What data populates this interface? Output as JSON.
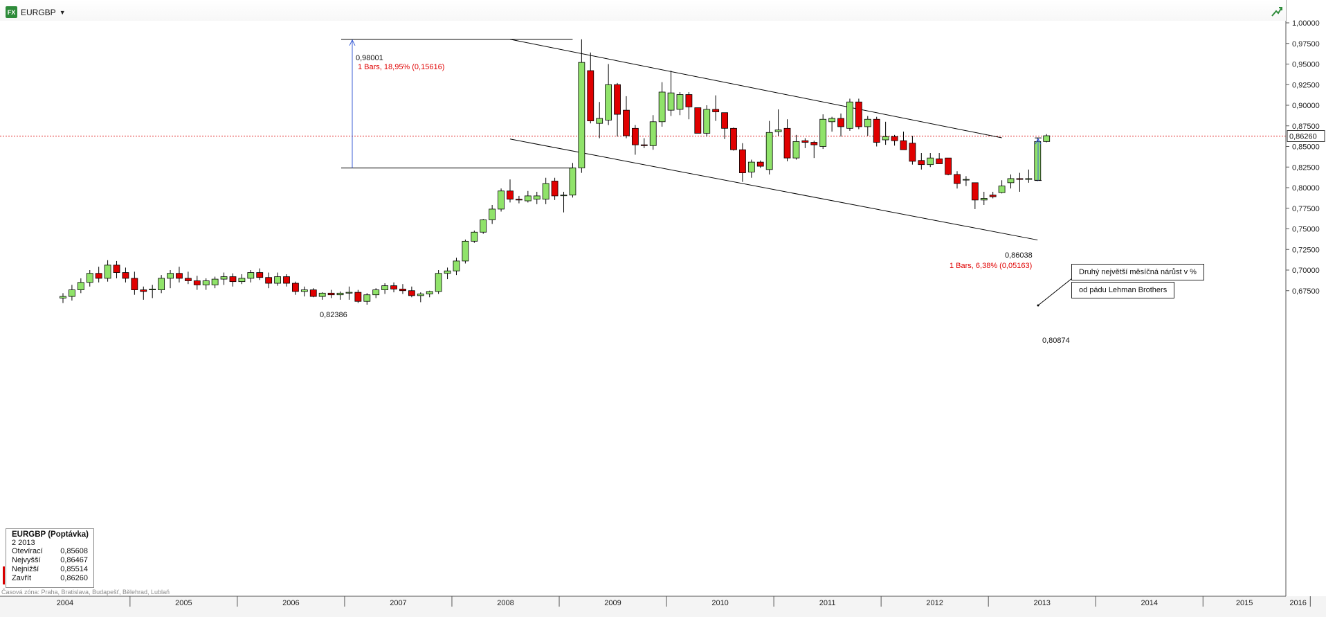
{
  "header": {
    "symbol": "EURGBP",
    "symbol_icon_text": "FX",
    "dropdown_icon": "chevron-down-icon",
    "trend_icon": "trend-line-icon"
  },
  "info_box": {
    "title": "EURGBP (Poptávka)",
    "date": "2 2013",
    "rows": [
      {
        "label": "Otevírací",
        "value": "0,85608"
      },
      {
        "label": "Nejvyšší",
        "value": "0,86467"
      },
      {
        "label": "Nejnižší",
        "value": "0,85514"
      },
      {
        "label": "Zavřít",
        "value": "0,86260"
      }
    ]
  },
  "timezone_note": "Časová zóna: Praha, Bratislava, Budapešť, Bělehrad, Lublaň",
  "annotations": {
    "box1": "Druhý největší měsíčná nárůst v %",
    "box2": "od pádu Lehman Brothers",
    "measure1": {
      "high": "0,98001",
      "low": "0,82386",
      "text": "1 Bars, 18,95% (0,15616)"
    },
    "measure2": {
      "high": "0,86038",
      "low": "0,80874",
      "text": "1 Bars, 6,38% (0,05163)"
    }
  },
  "chart_data": {
    "type": "candlestick",
    "symbol": "EURGBP",
    "timeframe": "monthly",
    "ylim": [
      0.66,
      1.0
    ],
    "y_ticks": [
      {
        "v": 1.0,
        "label": "1,00000"
      },
      {
        "v": 0.975,
        "label": "0,97500"
      },
      {
        "v": 0.95,
        "label": "0,95000"
      },
      {
        "v": 0.925,
        "label": "0,92500"
      },
      {
        "v": 0.9,
        "label": "0,90000"
      },
      {
        "v": 0.875,
        "label": "0,87500"
      },
      {
        "v": 0.85,
        "label": "0,85000"
      },
      {
        "v": 0.825,
        "label": "0,82500"
      },
      {
        "v": 0.8,
        "label": "0,80000"
      },
      {
        "v": 0.775,
        "label": "0,77500"
      },
      {
        "v": 0.75,
        "label": "0,75000"
      },
      {
        "v": 0.725,
        "label": "0,72500"
      },
      {
        "v": 0.7,
        "label": "0,70000"
      },
      {
        "v": 0.675,
        "label": "0,67500"
      }
    ],
    "x_year_labels": [
      "2004",
      "2005",
      "2006",
      "2007",
      "2008",
      "2009",
      "2010",
      "2011",
      "2012",
      "2013",
      "2014",
      "2015",
      "2016"
    ],
    "current_price": {
      "value": 0.8626,
      "label": "0,86260"
    },
    "trendlines": [
      {
        "from": [
          "2008-07",
          0.98001
        ],
        "to": [
          "2013-02",
          0.8605
        ]
      },
      {
        "from": [
          "2008-07",
          0.859
        ],
        "to": [
          "2013-06",
          0.7365
        ]
      }
    ],
    "candles": [
      [
        "2004-05",
        0.666,
        0.672,
        0.66,
        0.668
      ],
      [
        "2004-06",
        0.668,
        0.682,
        0.663,
        0.676
      ],
      [
        "2004-07",
        0.676,
        0.69,
        0.672,
        0.685
      ],
      [
        "2004-08",
        0.685,
        0.7,
        0.68,
        0.696
      ],
      [
        "2004-09",
        0.696,
        0.704,
        0.685,
        0.69
      ],
      [
        "2004-10",
        0.69,
        0.712,
        0.686,
        0.706
      ],
      [
        "2004-11",
        0.706,
        0.711,
        0.69,
        0.697
      ],
      [
        "2004-12",
        0.697,
        0.703,
        0.685,
        0.69
      ],
      [
        "2005-01",
        0.69,
        0.698,
        0.67,
        0.676
      ],
      [
        "2005-02",
        0.676,
        0.68,
        0.664,
        0.674
      ],
      [
        "2005-03",
        0.676,
        0.682,
        0.666,
        0.677
      ],
      [
        "2005-04",
        0.676,
        0.694,
        0.672,
        0.69
      ],
      [
        "2005-05",
        0.69,
        0.7,
        0.678,
        0.696
      ],
      [
        "2005-06",
        0.696,
        0.704,
        0.685,
        0.69
      ],
      [
        "2005-07",
        0.69,
        0.698,
        0.683,
        0.687
      ],
      [
        "2005-08",
        0.687,
        0.693,
        0.676,
        0.682
      ],
      [
        "2005-09",
        0.682,
        0.69,
        0.676,
        0.687
      ],
      [
        "2005-10",
        0.682,
        0.692,
        0.678,
        0.689
      ],
      [
        "2005-11",
        0.689,
        0.697,
        0.682,
        0.692
      ],
      [
        "2005-12",
        0.692,
        0.696,
        0.68,
        0.686
      ],
      [
        "2006-01",
        0.686,
        0.695,
        0.683,
        0.69
      ],
      [
        "2006-02",
        0.69,
        0.7,
        0.685,
        0.697
      ],
      [
        "2006-03",
        0.697,
        0.702,
        0.688,
        0.691
      ],
      [
        "2006-04",
        0.691,
        0.697,
        0.678,
        0.684
      ],
      [
        "2006-05",
        0.684,
        0.697,
        0.681,
        0.692
      ],
      [
        "2006-06",
        0.692,
        0.695,
        0.68,
        0.684
      ],
      [
        "2006-07",
        0.684,
        0.686,
        0.67,
        0.674
      ],
      [
        "2006-08",
        0.674,
        0.68,
        0.668,
        0.676
      ],
      [
        "2006-09",
        0.676,
        0.678,
        0.667,
        0.668
      ],
      [
        "2006-10",
        0.668,
        0.673,
        0.664,
        0.672
      ],
      [
        "2006-11",
        0.672,
        0.676,
        0.666,
        0.67
      ],
      [
        "2006-12",
        0.67,
        0.674,
        0.664,
        0.672
      ],
      [
        "2007-01",
        0.672,
        0.68,
        0.664,
        0.673
      ],
      [
        "2007-02",
        0.673,
        0.676,
        0.66,
        0.662
      ],
      [
        "2007-03",
        0.662,
        0.672,
        0.658,
        0.67
      ],
      [
        "2007-04",
        0.67,
        0.678,
        0.666,
        0.676
      ],
      [
        "2007-05",
        0.676,
        0.684,
        0.671,
        0.681
      ],
      [
        "2007-06",
        0.681,
        0.685,
        0.673,
        0.677
      ],
      [
        "2007-07",
        0.677,
        0.683,
        0.671,
        0.675
      ],
      [
        "2007-08",
        0.675,
        0.68,
        0.667,
        0.669
      ],
      [
        "2007-09",
        0.669,
        0.673,
        0.661,
        0.671
      ],
      [
        "2007-10",
        0.671,
        0.675,
        0.667,
        0.674
      ],
      [
        "2007-11",
        0.674,
        0.7,
        0.671,
        0.696
      ],
      [
        "2007-12",
        0.696,
        0.703,
        0.689,
        0.699
      ],
      [
        "2008-01",
        0.699,
        0.715,
        0.694,
        0.711
      ],
      [
        "2008-02",
        0.711,
        0.737,
        0.708,
        0.735
      ],
      [
        "2008-03",
        0.735,
        0.748,
        0.733,
        0.746
      ],
      [
        "2008-04",
        0.746,
        0.762,
        0.744,
        0.761
      ],
      [
        "2008-05",
        0.761,
        0.779,
        0.756,
        0.774
      ],
      [
        "2008-06",
        0.774,
        0.799,
        0.771,
        0.796
      ],
      [
        "2008-07",
        0.796,
        0.81,
        0.782,
        0.786
      ],
      [
        "2008-08",
        0.786,
        0.79,
        0.781,
        0.785
      ],
      [
        "2008-09",
        0.784,
        0.796,
        0.782,
        0.79
      ],
      [
        "2008-10",
        0.786,
        0.795,
        0.78,
        0.79
      ],
      [
        "2008-11",
        0.786,
        0.812,
        0.78,
        0.805
      ],
      [
        "2008-12",
        0.808,
        0.812,
        0.785,
        0.79
      ],
      [
        "2009-01",
        0.791,
        0.795,
        0.77,
        0.791
      ],
      [
        "2009-02",
        0.791,
        0.83,
        0.788,
        0.824
      ],
      [
        "2009-03",
        0.824,
        0.98,
        0.818,
        0.952
      ],
      [
        "2009-04",
        0.942,
        0.964,
        0.878,
        0.881
      ],
      [
        "2009-05",
        0.878,
        0.904,
        0.86,
        0.884
      ],
      [
        "2009-06",
        0.882,
        0.95,
        0.876,
        0.925
      ],
      [
        "2009-07",
        0.925,
        0.927,
        0.862,
        0.889
      ],
      [
        "2009-08",
        0.894,
        0.911,
        0.86,
        0.863
      ],
      [
        "2009-09",
        0.872,
        0.876,
        0.84,
        0.852
      ],
      [
        "2009-10",
        0.852,
        0.86,
        0.848,
        0.851
      ],
      [
        "2009-11",
        0.851,
        0.888,
        0.846,
        0.88
      ],
      [
        "2009-12",
        0.88,
        0.928,
        0.874,
        0.916
      ],
      [
        "2010-01",
        0.894,
        0.942,
        0.887,
        0.915
      ],
      [
        "2010-02",
        0.895,
        0.916,
        0.888,
        0.913
      ],
      [
        "2010-03",
        0.913,
        0.916,
        0.883,
        0.898
      ],
      [
        "2010-04",
        0.897,
        0.897,
        0.866,
        0.866
      ],
      [
        "2010-05",
        0.866,
        0.9,
        0.862,
        0.895
      ],
      [
        "2010-06",
        0.895,
        0.912,
        0.881,
        0.892
      ],
      [
        "2010-07",
        0.891,
        0.891,
        0.859,
        0.872
      ],
      [
        "2010-08",
        0.872,
        0.873,
        0.845,
        0.846
      ],
      [
        "2010-09",
        0.846,
        0.854,
        0.807,
        0.818
      ],
      [
        "2010-10",
        0.819,
        0.834,
        0.812,
        0.831
      ],
      [
        "2010-11",
        0.831,
        0.833,
        0.824,
        0.826
      ],
      [
        "2010-12",
        0.822,
        0.881,
        0.816,
        0.867
      ],
      [
        "2011-01",
        0.868,
        0.895,
        0.863,
        0.87
      ],
      [
        "2011-02",
        0.872,
        0.883,
        0.832,
        0.836
      ],
      [
        "2011-03",
        0.836,
        0.864,
        0.834,
        0.856
      ],
      [
        "2011-04",
        0.857,
        0.86,
        0.848,
        0.855
      ],
      [
        "2011-05",
        0.855,
        0.857,
        0.836,
        0.852
      ],
      [
        "2011-06",
        0.85,
        0.889,
        0.847,
        0.883
      ],
      [
        "2011-07",
        0.88,
        0.886,
        0.868,
        0.884
      ],
      [
        "2011-08",
        0.884,
        0.89,
        0.862,
        0.874
      ],
      [
        "2011-09",
        0.872,
        0.908,
        0.869,
        0.904
      ],
      [
        "2011-10",
        0.904,
        0.908,
        0.871,
        0.874
      ],
      [
        "2011-11",
        0.874,
        0.887,
        0.863,
        0.883
      ],
      [
        "2011-12",
        0.883,
        0.886,
        0.85,
        0.855
      ],
      [
        "2012-01",
        0.858,
        0.88,
        0.852,
        0.862
      ],
      [
        "2012-02",
        0.862,
        0.864,
        0.851,
        0.857
      ],
      [
        "2012-03",
        0.857,
        0.868,
        0.848,
        0.846
      ],
      [
        "2012-04",
        0.854,
        0.863,
        0.828,
        0.832
      ],
      [
        "2012-05",
        0.833,
        0.842,
        0.822,
        0.828
      ],
      [
        "2012-06",
        0.828,
        0.842,
        0.825,
        0.836
      ],
      [
        "2012-07",
        0.835,
        0.842,
        0.829,
        0.829
      ],
      [
        "2012-08",
        0.836,
        0.836,
        0.815,
        0.816
      ],
      [
        "2012-09",
        0.816,
        0.82,
        0.799,
        0.805
      ],
      [
        "2012-10",
        0.81,
        0.814,
        0.802,
        0.81
      ],
      [
        "2012-11",
        0.806,
        0.806,
        0.774,
        0.785
      ],
      [
        "2012-12",
        0.785,
        0.795,
        0.779,
        0.787
      ],
      [
        "2013-01",
        0.791,
        0.795,
        0.787,
        0.789
      ],
      [
        "2013-02",
        0.794,
        0.809,
        0.793,
        0.802
      ],
      [
        "2013-03",
        0.806,
        0.816,
        0.799,
        0.811
      ],
      [
        "2013-04",
        0.811,
        0.818,
        0.795,
        0.81
      ],
      [
        "2013-05",
        0.81,
        0.822,
        0.806,
        0.811
      ],
      [
        "2013-06",
        0.809,
        0.86,
        0.808,
        0.856
      ],
      [
        "2013-07",
        0.856,
        0.865,
        0.855,
        0.863
      ]
    ]
  }
}
